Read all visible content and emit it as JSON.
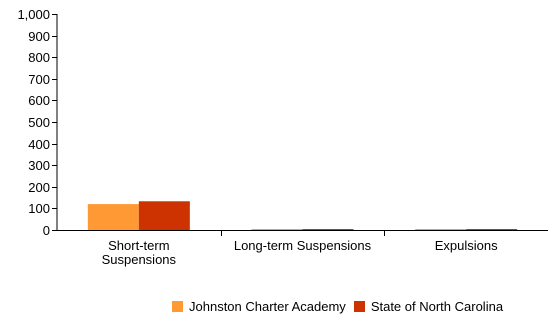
{
  "chart_data": {
    "type": "bar",
    "categories": [
      "Short-term Suspensions",
      "Long-term Suspensions",
      "Expulsions"
    ],
    "category_label_lines": [
      [
        "Short-term",
        "Suspensions"
      ],
      [
        "Long-term Suspensions"
      ],
      [
        "Expulsions"
      ]
    ],
    "series": [
      {
        "name": "Johnston Charter Academy",
        "color": "#ff9933",
        "values": [
          120,
          0,
          0
        ]
      },
      {
        "name": "State of North Carolina",
        "color": "#cc3300",
        "values": [
          133,
          1,
          1
        ]
      }
    ],
    "ylim": [
      0,
      1000
    ],
    "yticks": [
      0,
      100,
      200,
      300,
      400,
      500,
      600,
      700,
      800,
      900,
      1000
    ],
    "ytick_labels": [
      "0",
      "100",
      "200",
      "300",
      "400",
      "500",
      "600",
      "700",
      "800",
      "900",
      "1,000"
    ],
    "grid": false,
    "legend_position": "bottom"
  }
}
